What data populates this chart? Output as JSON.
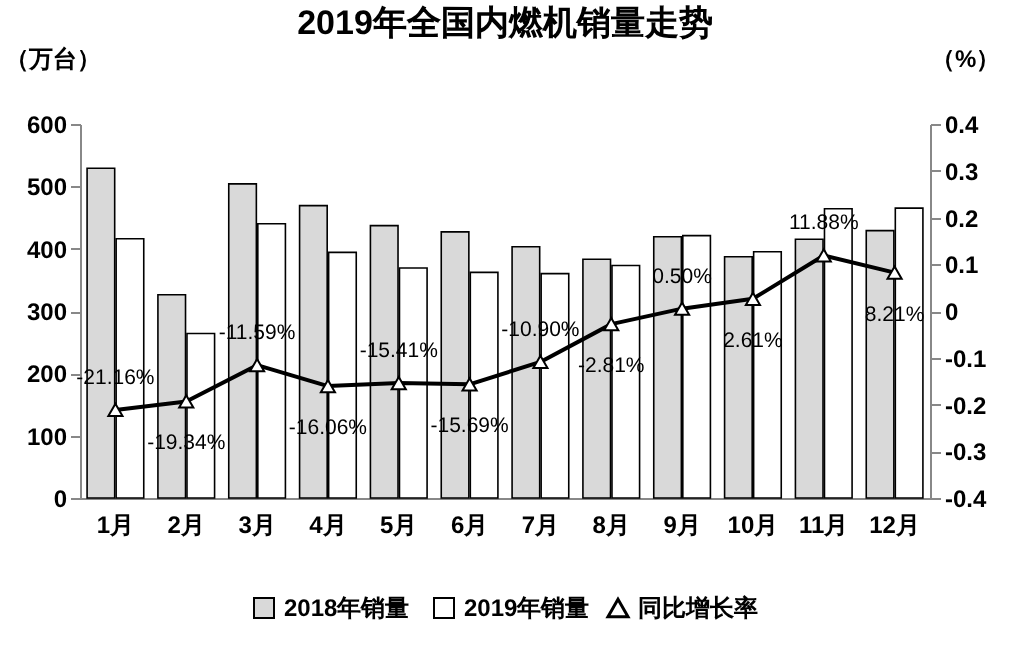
{
  "chart_data": {
    "type": "bar",
    "title": "2019年全国内燃机销量走势",
    "ylabel": "（万台）",
    "y2label": "（%）",
    "categories": [
      "1月",
      "2月",
      "3月",
      "4月",
      "5月",
      "6月",
      "7月",
      "8月",
      "9月",
      "10月",
      "11月",
      "12月"
    ],
    "series": [
      {
        "name": "2018年销量",
        "type": "bar",
        "color": "#d9d9d9",
        "values": [
          529,
          326,
          504,
          469,
          437,
          427,
          403,
          383,
          419,
          387,
          415,
          429
        ]
      },
      {
        "name": "2019年销量",
        "type": "bar",
        "color": "#ffffff",
        "values": [
          416,
          264,
          440,
          394,
          369,
          362,
          360,
          373,
          421,
          395,
          464,
          465
        ]
      },
      {
        "name": "同比增长率",
        "type": "line",
        "axis": "y2",
        "color": "#000000",
        "marker": "triangle",
        "values": [
          -0.2116,
          -0.1934,
          -0.1159,
          -0.1606,
          -0.1541,
          -0.1569,
          -0.109,
          -0.0281,
          0.005,
          0.0261,
          0.1188,
          0.0821
        ],
        "value_labels": [
          "-21.16%",
          "-19.34%",
          "-11.59%",
          "-16.06%",
          "-15.41%",
          "-15.69%",
          "-10.90%",
          "-2.81%",
          "0.50%",
          "2.61%",
          "11.88%",
          "8.21%"
        ]
      }
    ],
    "ylim": [
      0,
      600
    ],
    "yticks": [
      0,
      100,
      200,
      300,
      400,
      500,
      600
    ],
    "y2lim": [
      -0.4,
      0.4
    ],
    "y2ticks": [
      -0.4,
      -0.3,
      -0.2,
      -0.1,
      0,
      0.1,
      0.2,
      0.3,
      0.4
    ],
    "grid": false,
    "legend": "bottom"
  }
}
